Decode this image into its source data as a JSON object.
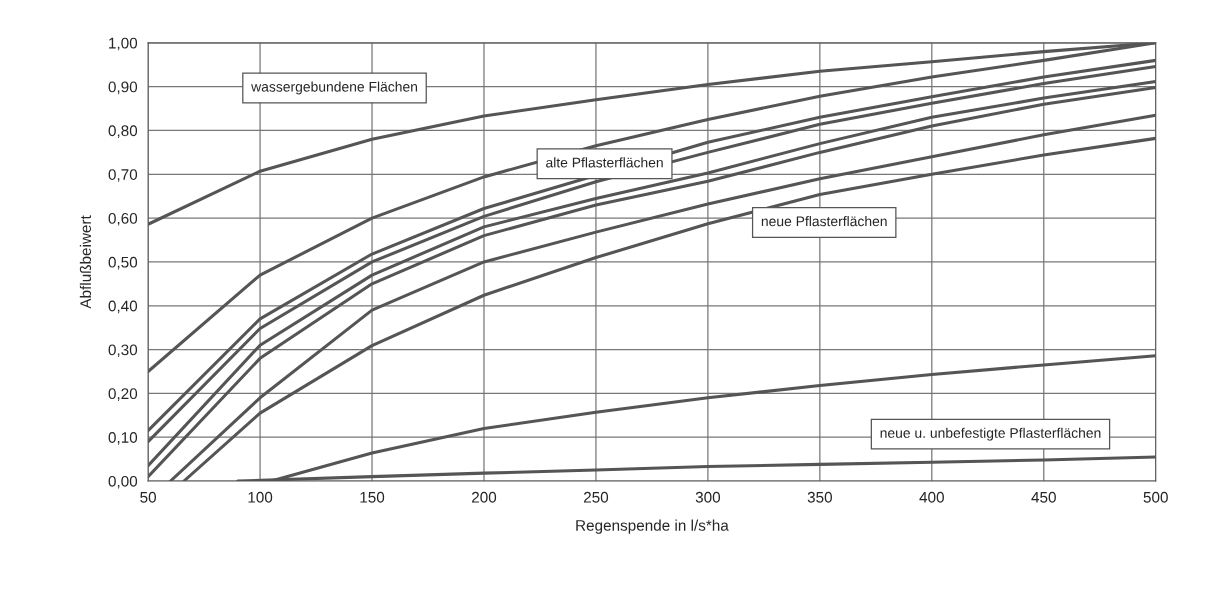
{
  "chart_data": {
    "type": "line",
    "xlabel": "Regenspende in l/s*ha",
    "ylabel": "Abflußbeiwert",
    "xlim": [
      50,
      500
    ],
    "xticks": [
      50,
      100,
      150,
      200,
      250,
      300,
      350,
      400,
      450,
      500
    ],
    "ylim": [
      0,
      1
    ],
    "yticks": [
      {
        "value": 0,
        "label": "0,00"
      },
      {
        "value": 0.1,
        "label": "0,10"
      },
      {
        "value": 0.2,
        "label": "0,20"
      },
      {
        "value": 0.3,
        "label": "0,30"
      },
      {
        "value": 0.4,
        "label": "0,40"
      },
      {
        "value": 0.5,
        "label": "0,50"
      },
      {
        "value": 0.6,
        "label": "0,60"
      },
      {
        "value": 0.7,
        "label": "0,70"
      },
      {
        "value": 0.8,
        "label": "0,80"
      },
      {
        "value": 0.9,
        "label": "0,90"
      },
      {
        "value": 1,
        "label": "1,00"
      }
    ],
    "grid": true,
    "marker": "none",
    "line_style": "solid",
    "x": [
      50,
      100,
      150,
      200,
      250,
      300,
      350,
      400,
      450,
      500
    ],
    "series": [
      {
        "color": "#555555",
        "values": [
          0.586,
          0.707,
          0.78,
          0.833,
          0.87,
          0.905,
          0.935,
          0.957,
          0.98,
          1.0
        ]
      },
      {
        "color": "#555555",
        "values": [
          0.25,
          0.47,
          0.6,
          0.694,
          0.765,
          0.825,
          0.878,
          0.922,
          0.96,
          1.0
        ]
      },
      {
        "color": "#555555",
        "values": [
          0.115,
          0.37,
          0.518,
          0.622,
          null,
          0.773,
          0.83,
          0.877,
          0.922,
          0.96
        ]
      },
      {
        "color": "#555555",
        "values": [
          0.09,
          0.348,
          0.5,
          0.604,
          0.683,
          0.75,
          0.814,
          0.862,
          0.907,
          0.946
        ]
      },
      {
        "color": "#555555",
        "values": [
          0.035,
          0.31,
          0.47,
          0.58,
          0.645,
          0.703,
          0.77,
          0.83,
          0.874,
          0.912
        ]
      },
      {
        "color": "#555555",
        "values": [
          0.01,
          0.28,
          0.45,
          0.56,
          0.63,
          0.684,
          0.75,
          0.81,
          0.86,
          0.898
        ]
      },
      {
        "color": "#555555",
        "x": [
          60,
          100,
          150,
          200,
          250,
          300,
          350,
          400,
          450,
          500
        ],
        "values": [
          0.0,
          0.19,
          0.39,
          0.5,
          0.568,
          0.632,
          0.69,
          0.74,
          0.79,
          0.835
        ]
      },
      {
        "color": "#555555",
        "x": [
          66,
          100,
          150,
          200,
          250,
          300,
          350,
          400,
          450,
          500
        ],
        "values": [
          0.0,
          0.155,
          0.309,
          0.424,
          0.51,
          0.587,
          0.654,
          0.7,
          0.744,
          0.782
        ]
      },
      {
        "color": "#555555",
        "x": [
          105,
          150,
          200,
          250,
          300,
          350,
          400,
          450,
          500
        ],
        "values": [
          0.0,
          0.064,
          0.12,
          0.157,
          0.19,
          0.218,
          0.243,
          0.265,
          0.286
        ]
      },
      {
        "color": "#555555",
        "x": [
          90,
          150,
          200,
          250,
          300,
          350,
          400,
          450,
          500
        ],
        "values": [
          0.0,
          0.01,
          0.018,
          0.025,
          0.033,
          0.038,
          0.043,
          0.048,
          0.055
        ]
      }
    ],
    "annotations": [
      "wassergebundene Flächen",
      "alte Pflasterflächen",
      "neue Pflasterflächen",
      "neue u. unbefestigte Pflasterflächen"
    ]
  }
}
